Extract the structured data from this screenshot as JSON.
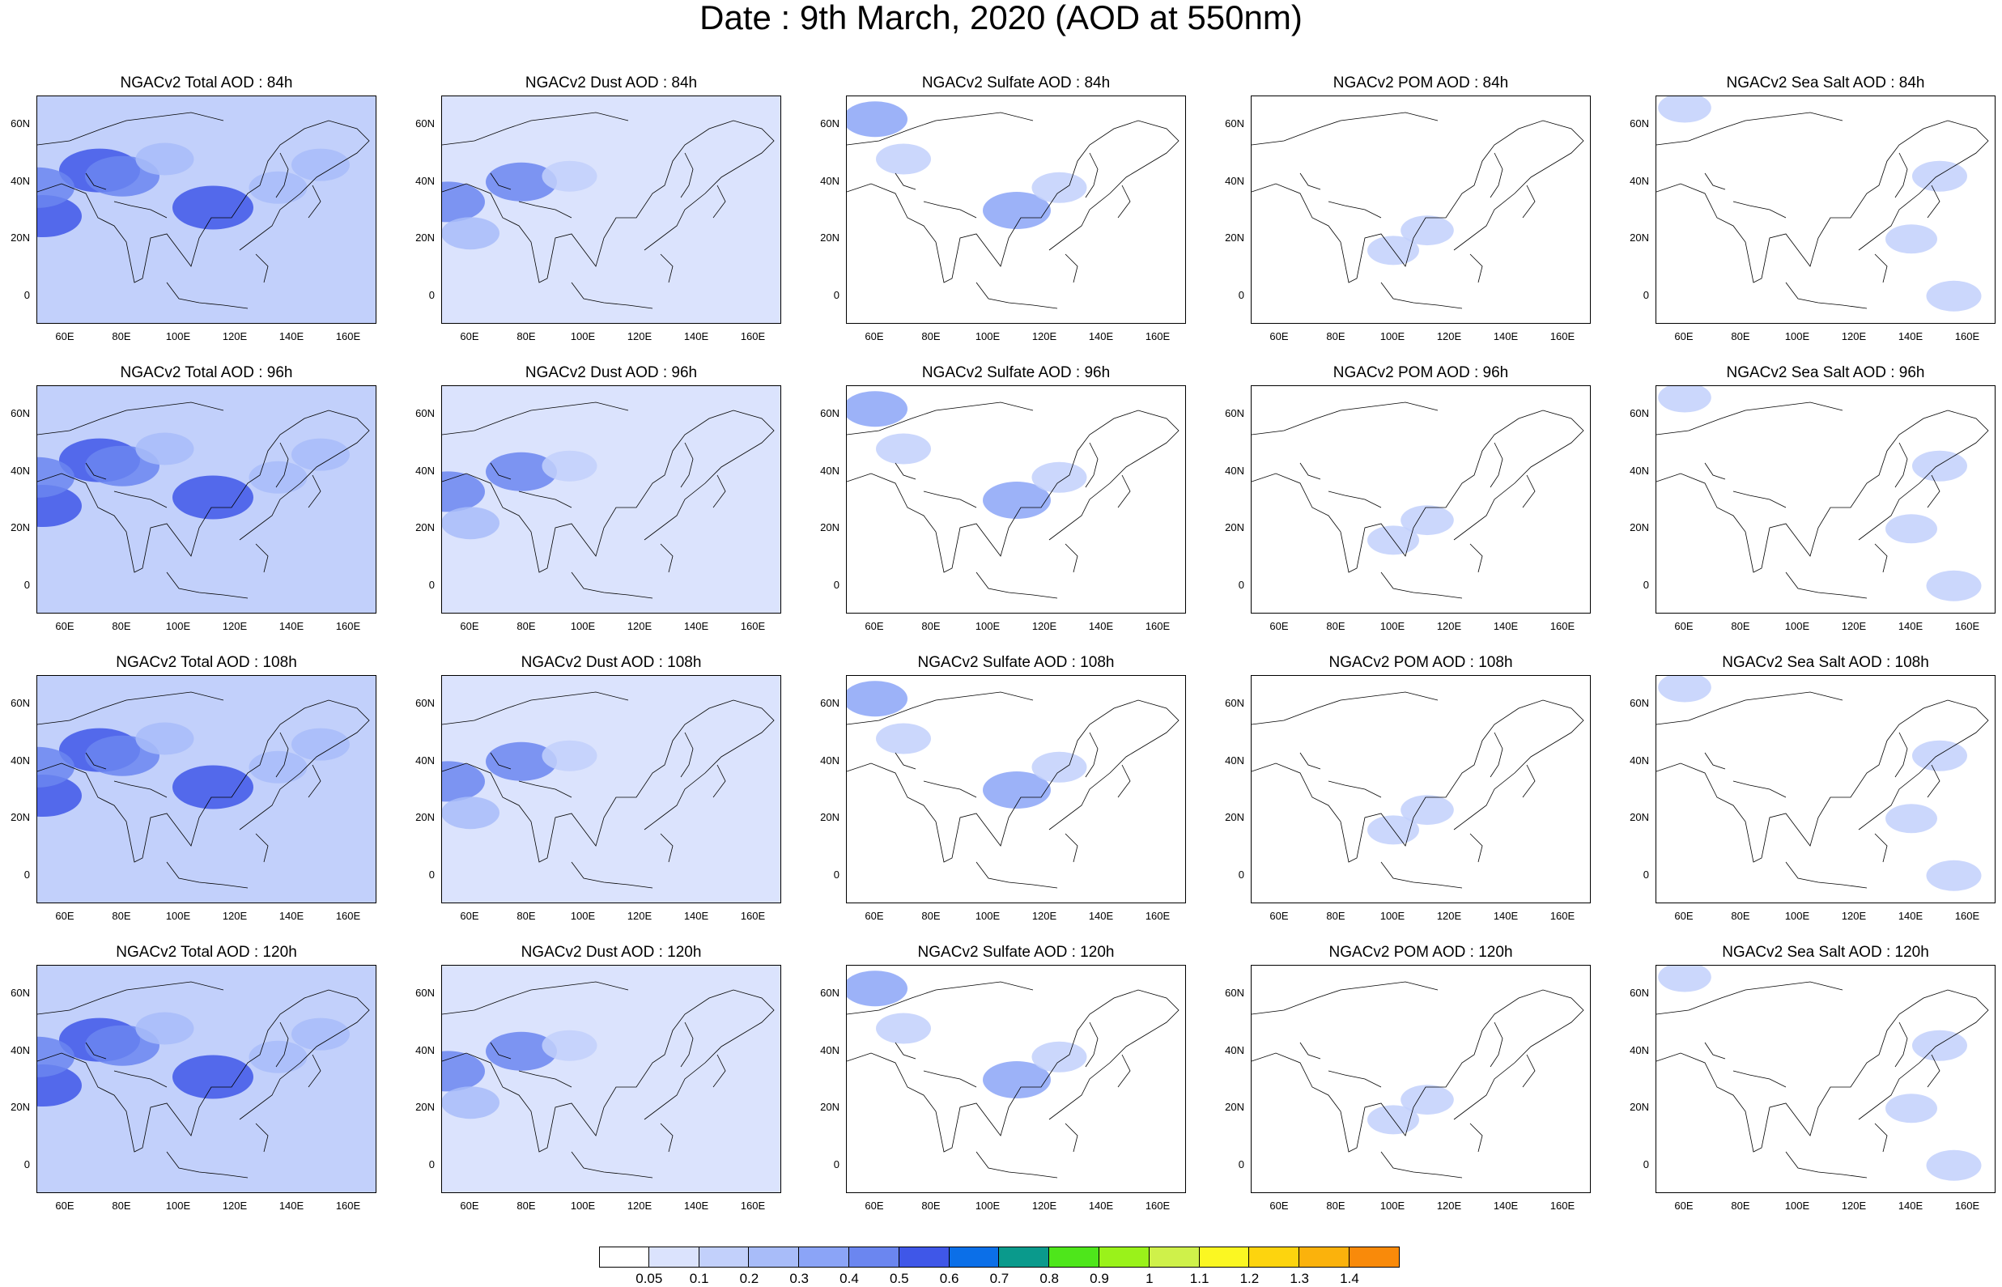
{
  "title": "Date : 9th March, 2020 (AOD at 550nm)",
  "panels": [
    {
      "label": "NGACv2 Total AOD : 84h",
      "field": "total",
      "hour": 84
    },
    {
      "label": "NGACv2 Dust AOD : 84h",
      "field": "dust",
      "hour": 84
    },
    {
      "label": "NGACv2 Sulfate AOD : 84h",
      "field": "sulfate",
      "hour": 84
    },
    {
      "label": "NGACv2 POM AOD : 84h",
      "field": "pom",
      "hour": 84
    },
    {
      "label": "NGACv2 Sea Salt AOD : 84h",
      "field": "seasalt",
      "hour": 84
    },
    {
      "label": "NGACv2 Total AOD : 96h",
      "field": "total",
      "hour": 96
    },
    {
      "label": "NGACv2 Dust AOD : 96h",
      "field": "dust",
      "hour": 96
    },
    {
      "label": "NGACv2 Sulfate AOD : 96h",
      "field": "sulfate",
      "hour": 96
    },
    {
      "label": "NGACv2 POM AOD : 96h",
      "field": "pom",
      "hour": 96
    },
    {
      "label": "NGACv2 Sea Salt AOD : 96h",
      "field": "seasalt",
      "hour": 96
    },
    {
      "label": "NGACv2 Total AOD : 108h",
      "field": "total",
      "hour": 108
    },
    {
      "label": "NGACv2 Dust AOD : 108h",
      "field": "dust",
      "hour": 108
    },
    {
      "label": "NGACv2 Sulfate AOD : 108h",
      "field": "sulfate",
      "hour": 108
    },
    {
      "label": "NGACv2 POM AOD : 108h",
      "field": "pom",
      "hour": 108
    },
    {
      "label": "NGACv2 Sea Salt AOD : 108h",
      "field": "seasalt",
      "hour": 108
    },
    {
      "label": "NGACv2 Total AOD : 120h",
      "field": "total",
      "hour": 120
    },
    {
      "label": "NGACv2 Dust AOD : 120h",
      "field": "dust",
      "hour": 120
    },
    {
      "label": "NGACv2 Sulfate AOD : 120h",
      "field": "sulfate",
      "hour": 120
    },
    {
      "label": "NGACv2 POM AOD : 120h",
      "field": "pom",
      "hour": 120
    },
    {
      "label": "NGACv2 Sea Salt  AOD : 120h",
      "field": "seasalt",
      "hour": 120
    }
  ],
  "lon_ticks": [
    "60E",
    "80E",
    "100E",
    "120E",
    "140E",
    "160E"
  ],
  "lat_ticks": [
    "60N",
    "40N",
    "20N",
    "0"
  ],
  "lon_range": [
    50,
    170
  ],
  "lat_range": [
    -10,
    70
  ],
  "colorbar": {
    "labels": [
      "0.05",
      "0.1",
      "0.2",
      "0.3",
      "0.4",
      "0.5",
      "0.6",
      "0.7",
      "0.8",
      "0.9",
      "1",
      "1.1",
      "1.2",
      "1.3",
      "1.4"
    ],
    "colors": [
      "#ffffff",
      "#dbe3fd",
      "#c2d0fb",
      "#a8bcf9",
      "#8ba4f7",
      "#6b86f0",
      "#3f57e8",
      "#0b6fe8",
      "#0a9a8c",
      "#4ee61b",
      "#9af21a",
      "#cff14a",
      "#fbf722",
      "#fdd40e",
      "#fbb20c",
      "#f98a0a",
      "#f65a0a",
      "#f01d0b"
    ]
  },
  "features": {
    "total": [
      {
        "lon": 72,
        "lat": 44,
        "val": 0.55
      },
      {
        "lon": 80,
        "lat": 42,
        "val": 0.45
      },
      {
        "lon": 112,
        "lat": 31,
        "val": 0.55
      },
      {
        "lon": 52,
        "lat": 28,
        "val": 0.5
      },
      {
        "lon": 50,
        "lat": 38,
        "val": 0.45
      },
      {
        "lon": 95,
        "lat": 48,
        "val": 0.2
      },
      {
        "lon": 135,
        "lat": 38,
        "val": 0.2
      },
      {
        "lon": 150,
        "lat": 46,
        "val": 0.2
      }
    ],
    "dust": [
      {
        "lon": 52,
        "lat": 33,
        "val": 0.45
      },
      {
        "lon": 78,
        "lat": 40,
        "val": 0.4
      },
      {
        "lon": 95,
        "lat": 42,
        "val": 0.15
      },
      {
        "lon": 60,
        "lat": 22,
        "val": 0.2
      }
    ],
    "sulfate": [
      {
        "lon": 60,
        "lat": 62,
        "val": 0.3
      },
      {
        "lon": 110,
        "lat": 30,
        "val": 0.35
      },
      {
        "lon": 125,
        "lat": 38,
        "val": 0.15
      },
      {
        "lon": 70,
        "lat": 48,
        "val": 0.15
      }
    ],
    "pom": [
      {
        "lon": 112,
        "lat": 23,
        "val": 0.12
      },
      {
        "lon": 100,
        "lat": 16,
        "val": 0.1
      }
    ],
    "seasalt": [
      {
        "lon": 150,
        "lat": 42,
        "val": 0.15
      },
      {
        "lon": 155,
        "lat": 0,
        "val": 0.15
      },
      {
        "lon": 60,
        "lat": 66,
        "val": 0.12
      },
      {
        "lon": 140,
        "lat": 20,
        "val": 0.1
      }
    ]
  }
}
